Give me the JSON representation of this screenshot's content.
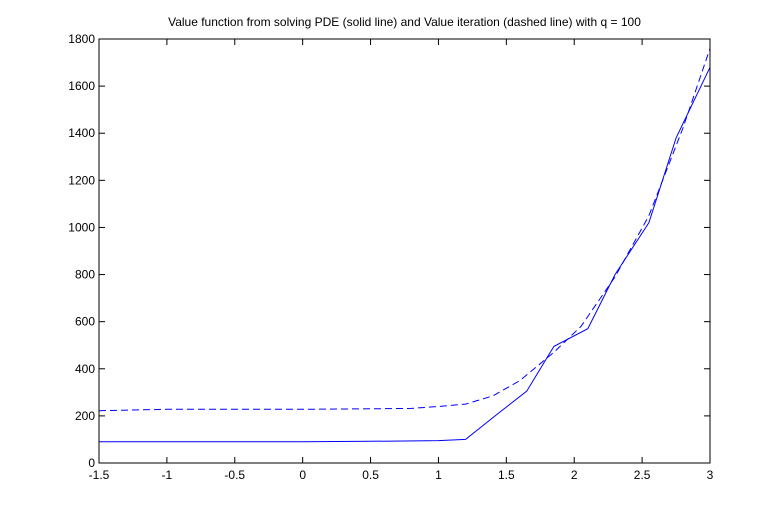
{
  "chart_data": {
    "type": "line",
    "title": "Value function from solving PDE (solid line) and Value iteration (dashed line) with q = 100",
    "xlabel": "",
    "ylabel": "",
    "xlim": [
      -1.5,
      3
    ],
    "ylim": [
      0,
      1800
    ],
    "grid": false,
    "legend": "none",
    "x_ticks": [
      "-1.5",
      "-1",
      "-0.5",
      "0",
      "0.5",
      "1",
      "1.5",
      "2",
      "2.5",
      "3"
    ],
    "y_ticks": [
      "0",
      "200",
      "400",
      "600",
      "800",
      "1000",
      "1200",
      "1400",
      "1600",
      "1800"
    ],
    "series": [
      {
        "style": "solid",
        "color": "#0000ff",
        "x": [
          -1.5,
          -1.0,
          -0.5,
          0.0,
          0.5,
          1.0,
          1.2,
          1.45,
          1.65,
          1.85,
          2.1,
          2.3,
          2.55,
          2.75,
          3.0
        ],
        "y": [
          90,
          90,
          90,
          90,
          92,
          95,
          100,
          215,
          305,
          495,
          570,
          800,
          1020,
          1380,
          1680
        ]
      },
      {
        "style": "dashed",
        "color": "#0000ff",
        "x": [
          -1.5,
          -1.0,
          -0.5,
          0.0,
          0.5,
          0.8,
          1.0,
          1.2,
          1.4,
          1.6,
          1.85,
          2.05,
          2.3,
          2.55,
          2.8,
          3.0
        ],
        "y": [
          222,
          228,
          228,
          228,
          230,
          232,
          240,
          250,
          285,
          350,
          470,
          580,
          790,
          1050,
          1420,
          1760
        ]
      }
    ]
  }
}
